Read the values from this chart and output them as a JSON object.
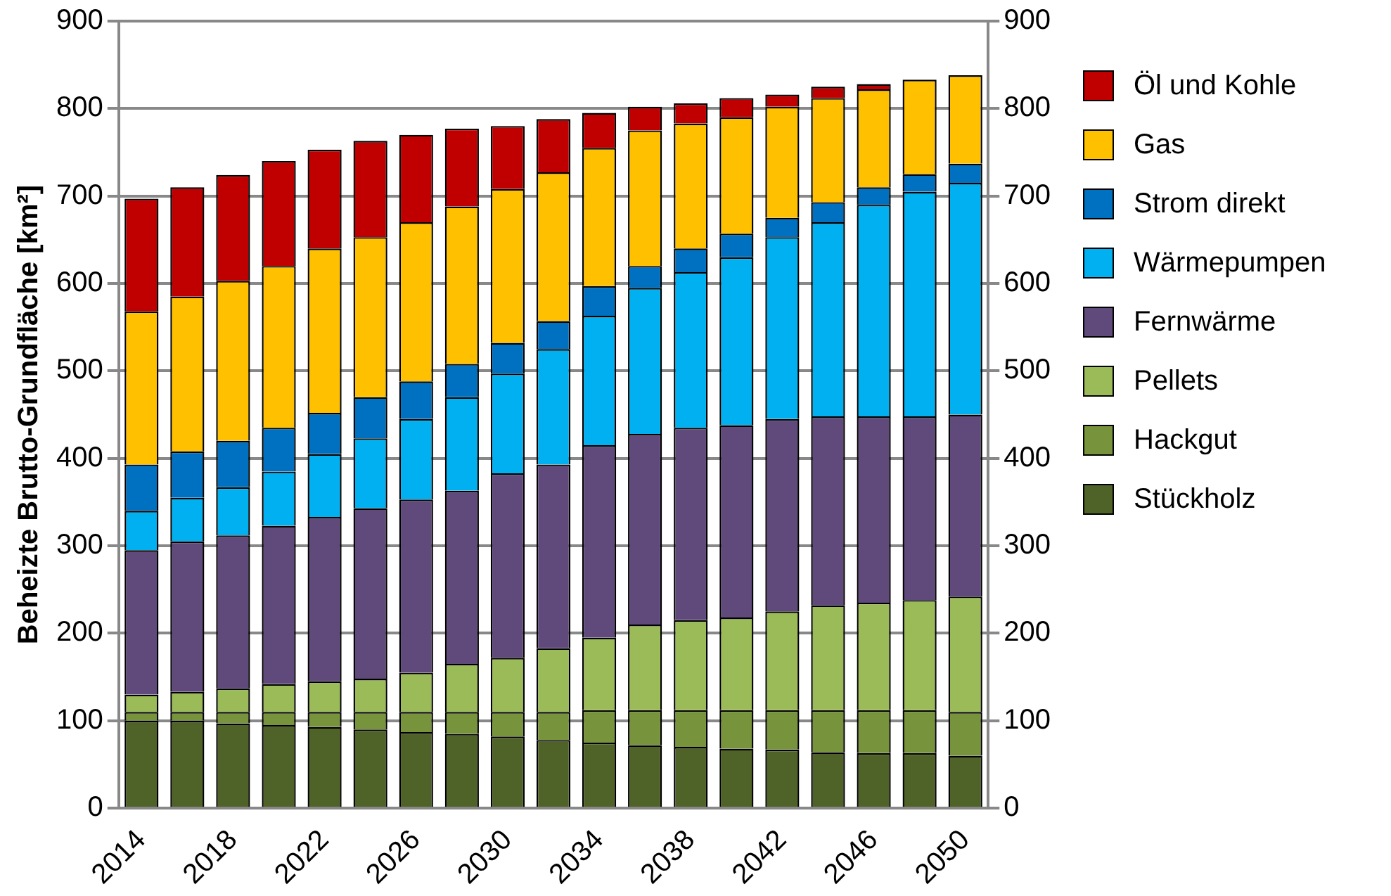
{
  "chart_data": {
    "type": "bar",
    "stacked": true,
    "ylabel": "Beheizte Brutto-Grundfläche [km²]",
    "categories": [
      "2014",
      null,
      "2018",
      null,
      "2022",
      null,
      "2026",
      null,
      "2030",
      null,
      "2034",
      null,
      "2038",
      null,
      "2042",
      null,
      "2046",
      null,
      "2050"
    ],
    "series": [
      {
        "name": "Stückholz",
        "color": "#4f6228",
        "values": [
          100,
          100,
          97,
          95,
          93,
          90,
          87,
          85,
          82,
          78,
          75,
          72,
          70,
          68,
          67,
          64,
          63,
          63,
          60
        ]
      },
      {
        "name": "Hackgut",
        "color": "#77933c",
        "values": [
          10,
          10,
          13,
          15,
          17,
          20,
          23,
          25,
          28,
          32,
          37,
          40,
          42,
          44,
          45,
          48,
          49,
          49,
          50
        ]
      },
      {
        "name": "Pellets",
        "color": "#9bbb59",
        "values": [
          20,
          23,
          27,
          32,
          35,
          38,
          45,
          55,
          62,
          73,
          83,
          98,
          103,
          106,
          113,
          120,
          123,
          126,
          132
        ]
      },
      {
        "name": "Fernwärme",
        "color": "#604a7b",
        "values": [
          165,
          172,
          175,
          181,
          188,
          195,
          198,
          198,
          211,
          210,
          220,
          218,
          220,
          220,
          220,
          216,
          213,
          210,
          208
        ]
      },
      {
        "name": "Wärmepumpen",
        "color": "#00b0f0",
        "values": [
          45,
          50,
          55,
          62,
          72,
          80,
          92,
          107,
          114,
          132,
          148,
          167,
          178,
          192,
          208,
          222,
          242,
          257,
          265
        ]
      },
      {
        "name": "Strom direkt",
        "color": "#0070c0",
        "values": [
          53,
          53,
          53,
          50,
          47,
          47,
          43,
          38,
          35,
          32,
          34,
          25,
          27,
          27,
          22,
          23,
          20,
          20,
          22
        ]
      },
      {
        "name": "Gas",
        "color": "#ffc000",
        "values": [
          175,
          177,
          183,
          185,
          188,
          183,
          182,
          180,
          176,
          170,
          158,
          155,
          143,
          133,
          127,
          119,
          112,
          108,
          101
        ]
      },
      {
        "name": "Öl und Kohle",
        "color": "#c00000",
        "values": [
          129,
          125,
          121,
          120,
          113,
          110,
          100,
          89,
          72,
          61,
          40,
          27,
          23,
          22,
          14,
          13,
          6,
          null,
          null
        ]
      }
    ],
    "ylim": [
      0,
      900
    ],
    "yticks": [
      0,
      100,
      200,
      300,
      400,
      500,
      600,
      700,
      800,
      900
    ],
    "y2lim": [
      0,
      900
    ],
    "y2ticks": [
      0,
      100,
      200,
      300,
      400,
      500,
      600,
      700,
      800,
      900
    ],
    "grid": "y",
    "legend": "right"
  }
}
